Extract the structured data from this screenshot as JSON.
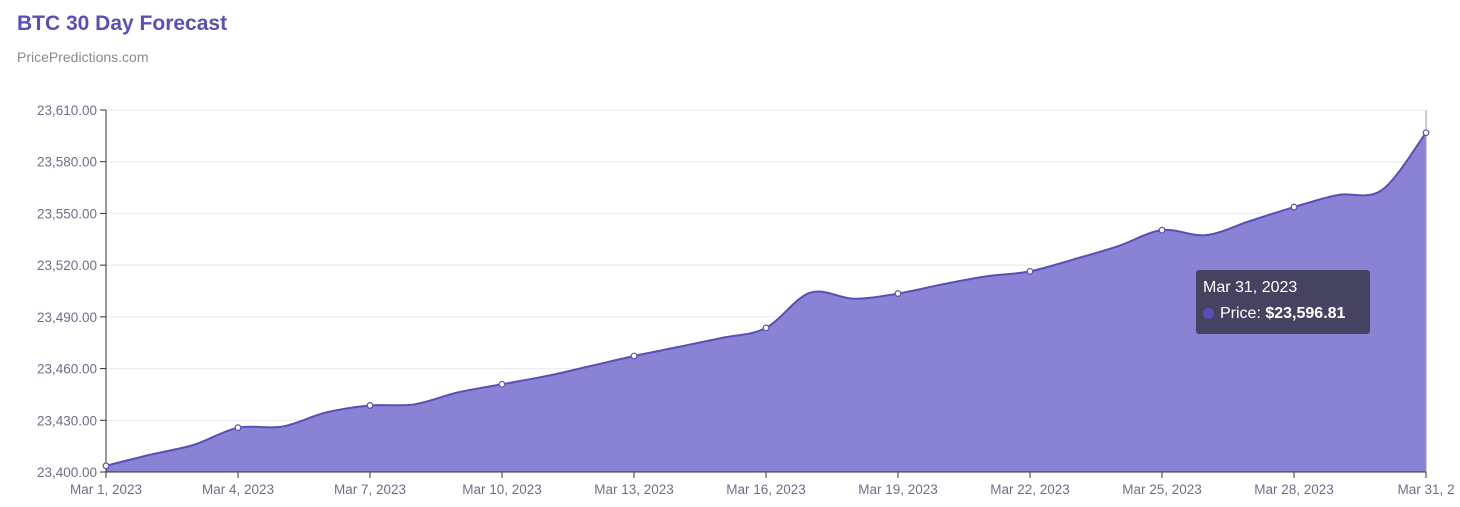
{
  "header": {
    "title": "BTC 30 Day Forecast",
    "subtitle": "PricePredictions.com"
  },
  "colors": {
    "series": "#5a4fb8",
    "fill": "#8a82d4",
    "title": "#5a4fb8",
    "grid": "#e8e8ee",
    "axis": "#333333",
    "tooltip_bg": "#3e3c54"
  },
  "chart_data": {
    "type": "area",
    "title": "BTC 30 Day Forecast",
    "subtitle": "PricePredictions.com",
    "xlabel": "",
    "ylabel": "",
    "ylim": [
      23400,
      23610
    ],
    "y_ticks": [
      "23,400.00",
      "23,430.00",
      "23,460.00",
      "23,490.00",
      "23,520.00",
      "23,550.00",
      "23,580.00",
      "23,610.00"
    ],
    "y_tick_values": [
      23400,
      23430,
      23460,
      23490,
      23520,
      23550,
      23580,
      23610
    ],
    "x_tick_labels": [
      "Mar 1, 2023",
      "Mar 4, 2023",
      "Mar 7, 2023",
      "Mar 10, 2023",
      "Mar 13, 2023",
      "Mar 16, 2023",
      "Mar 19, 2023",
      "Mar 22, 2023",
      "Mar 25, 2023",
      "Mar 28, 2023",
      "Mar 31, 2"
    ],
    "x_tick_indices": [
      0,
      3,
      6,
      9,
      12,
      15,
      18,
      21,
      24,
      27,
      30
    ],
    "grid": true,
    "legend": "none",
    "x": [
      "Mar 1, 2023",
      "Mar 2, 2023",
      "Mar 3, 2023",
      "Mar 4, 2023",
      "Mar 5, 2023",
      "Mar 6, 2023",
      "Mar 7, 2023",
      "Mar 8, 2023",
      "Mar 9, 2023",
      "Mar 10, 2023",
      "Mar 11, 2023",
      "Mar 12, 2023",
      "Mar 13, 2023",
      "Mar 14, 2023",
      "Mar 15, 2023",
      "Mar 16, 2023",
      "Mar 17, 2023",
      "Mar 18, 2023",
      "Mar 19, 2023",
      "Mar 20, 2023",
      "Mar 21, 2023",
      "Mar 22, 2023",
      "Mar 23, 2023",
      "Mar 24, 2023",
      "Mar 25, 2023",
      "Mar 26, 2023",
      "Mar 27, 2023",
      "Mar 28, 2023",
      "Mar 29, 2023",
      "Mar 30, 2023",
      "Mar 31, 2023"
    ],
    "series": [
      {
        "name": "Price",
        "values": [
          23403.6,
          23410.0,
          23415.8,
          23425.7,
          23426.3,
          23434.5,
          23438.6,
          23439.2,
          23446.2,
          23450.9,
          23455.6,
          23461.4,
          23467.3,
          23472.5,
          23477.8,
          23483.6,
          23504.0,
          23500.5,
          23503.5,
          23508.8,
          23513.5,
          23516.4,
          23523.4,
          23531.0,
          23540.3,
          23537.4,
          23545.6,
          23553.7,
          23560.7,
          23563.6,
          23596.81
        ]
      }
    ]
  },
  "tooltip": {
    "date": "Mar 31, 2023",
    "label": "Price:",
    "value": "$23,596.81"
  }
}
